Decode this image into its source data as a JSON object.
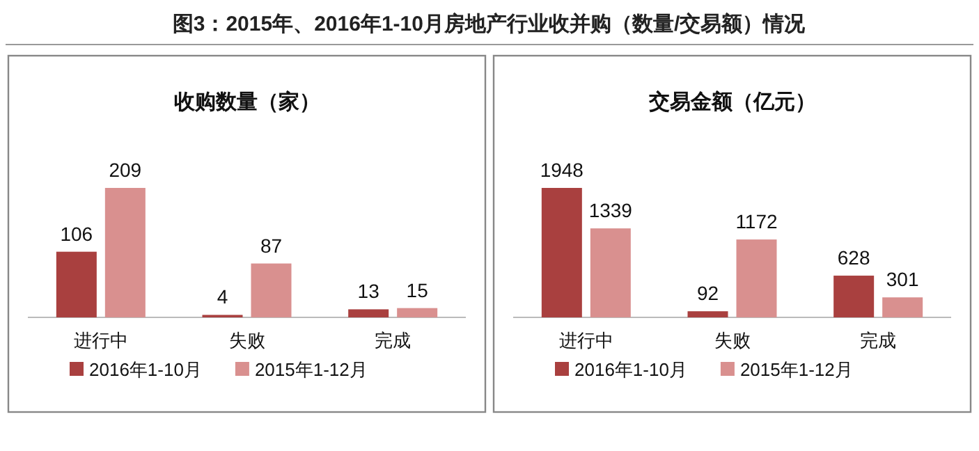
{
  "chart_data": [
    {
      "type": "bar",
      "title": "收购数量（家）",
      "annotations": [
        "图3：2015年、2016年1-10月房地产行业收并购（数量/交易额）情况"
      ],
      "categories": [
        "进行中",
        "失败",
        "完成"
      ],
      "series": [
        {
          "name": "2016年1-10月",
          "color": "#a9403f",
          "values": [
            106,
            4,
            13
          ]
        },
        {
          "name": "2015年1-12月",
          "color": "#d9908f",
          "values": [
            209,
            87,
            15
          ]
        }
      ],
      "data_labels": true,
      "legend": "bottom"
    },
    {
      "type": "bar",
      "title": "交易金额（亿元）",
      "categories": [
        "进行中",
        "失败",
        "完成"
      ],
      "series": [
        {
          "name": "2016年1-10月",
          "color": "#a9403f",
          "values": [
            1948,
            92,
            628
          ]
        },
        {
          "name": "2015年1-12月",
          "color": "#d9908f",
          "values": [
            1339,
            1172,
            301
          ]
        }
      ],
      "data_labels": true,
      "legend": "bottom"
    }
  ]
}
